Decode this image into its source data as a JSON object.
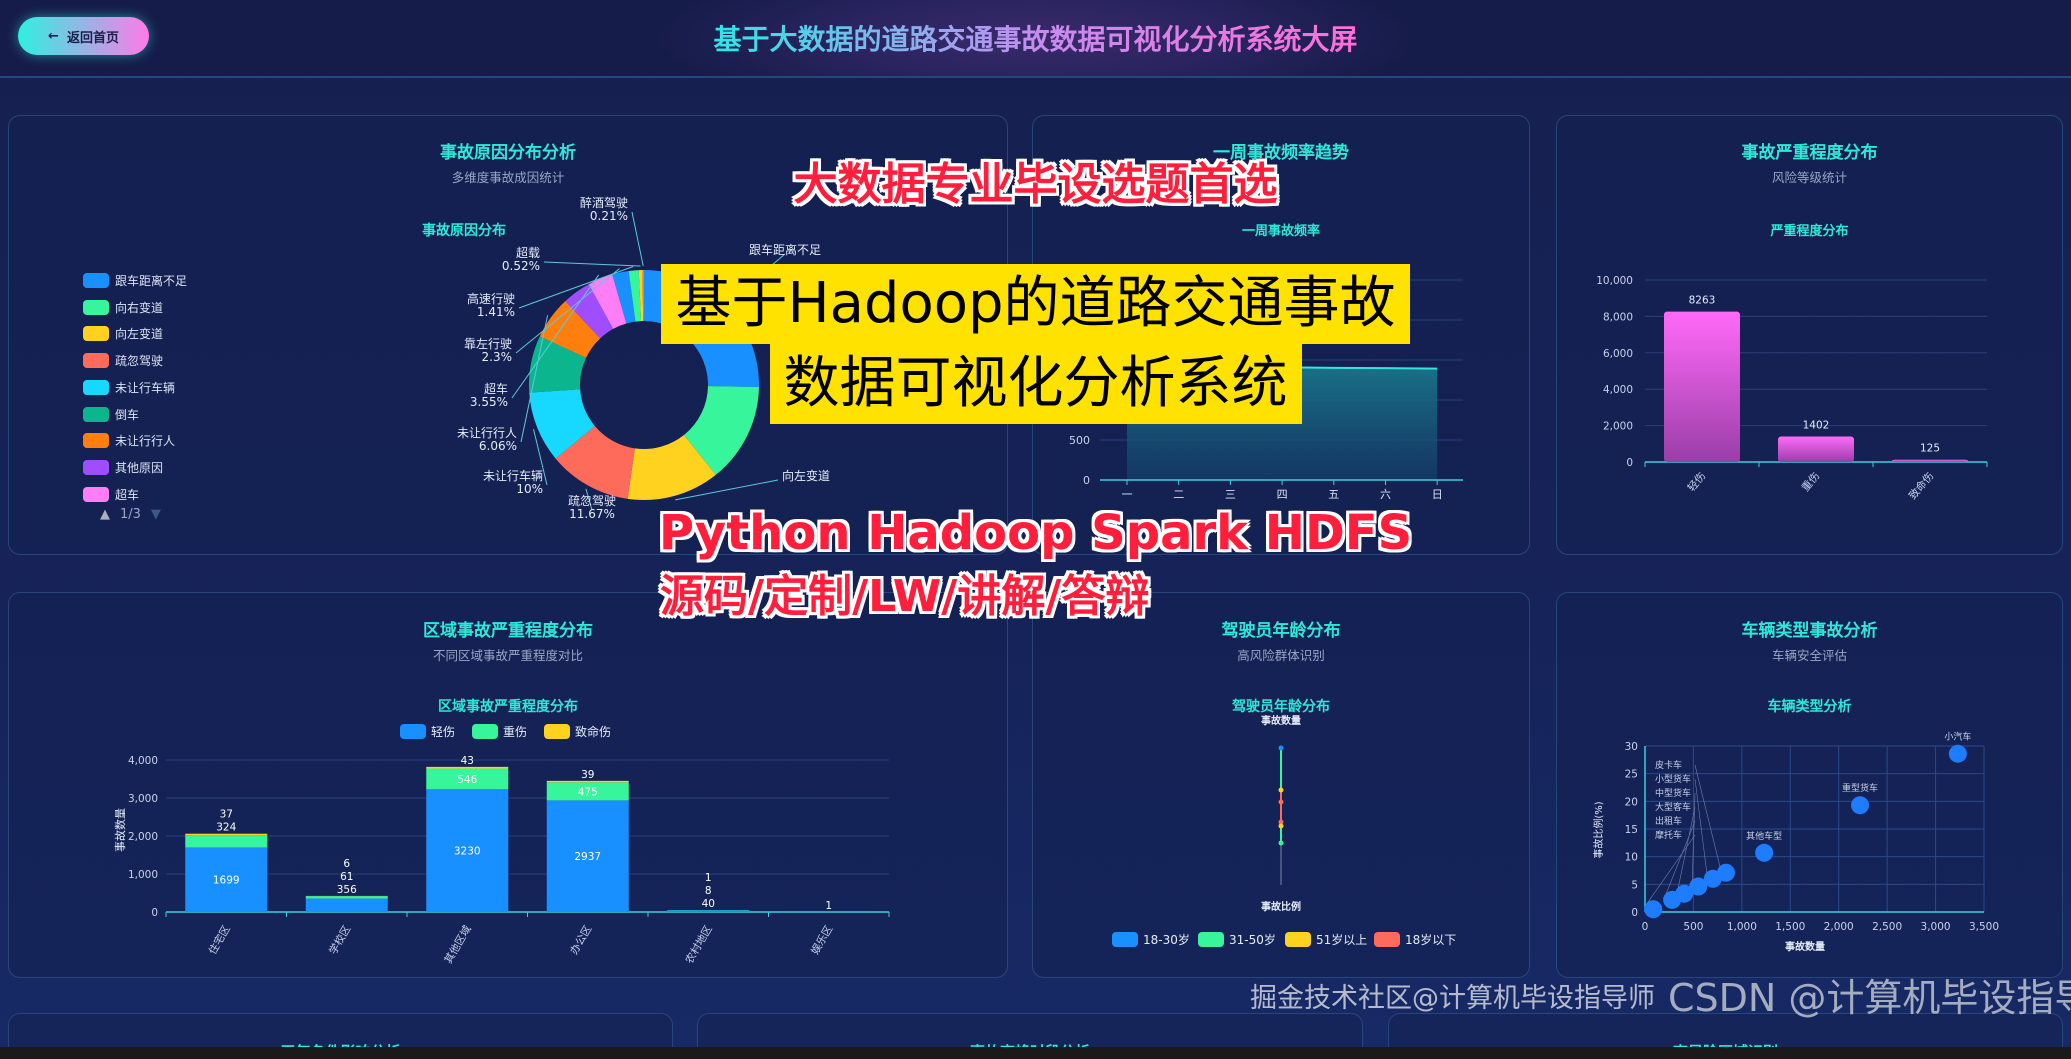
{
  "header": {
    "back_label": "返回首页",
    "back_icon": "arrow-left-icon",
    "title": "基于大数据的道路交通事故数据可视化分析系统大屏"
  },
  "colors": {
    "palette": [
      "#1890ff",
      "#36f59a",
      "#ffd21f",
      "#ff6b5b",
      "#17d9ff",
      "#0bb68f",
      "#ff7f0e",
      "#a04dff",
      "#ff7ef5"
    ],
    "accent": "#2ee8d8",
    "severity_bar": "#ff6af0"
  },
  "cause_panel": {
    "title": "事故原因分布分析",
    "subtitle": "多维度事故成因统计",
    "chart_title": "事故原因分布",
    "legend": [
      "跟车距离不足",
      "向右变道",
      "向左变道",
      "疏忽驾驶",
      "未让行车辆",
      "倒车",
      "未让行行人",
      "其他原因",
      "超车"
    ],
    "pager": "1/3"
  },
  "week_panel": {
    "title": "一周事故频率趋势",
    "chart_title": "一周事故频率"
  },
  "severity_panel": {
    "title": "事故严重程度分布",
    "subtitle": "风险等级统计",
    "chart_title": "严重程度分布"
  },
  "region_panel": {
    "title": "区域事故严重程度分布",
    "subtitle": "不同区域事故严重程度对比",
    "chart_title": "区域事故严重程度分布"
  },
  "age_panel": {
    "title": "驾驶员年龄分布",
    "subtitle": "高风险群体识别",
    "chart_title": "驾驶员年龄分布"
  },
  "vehicle_panel": {
    "title": "车辆类型事故分析",
    "subtitle": "车辆安全评估",
    "chart_title": "车辆类型分析"
  },
  "bottom_panels": [
    "天气条件影响分析",
    "事故高峰时段分析",
    "高风险区域识别"
  ],
  "chart_data": [
    {
      "id": "cause",
      "type": "pie",
      "donut": true,
      "slices": [
        {
          "name": "跟车距离不足",
          "value": 25.28,
          "label": "跟车距离不足"
        },
        {
          "name": "向右变道",
          "value": 14
        },
        {
          "name": "向左变道",
          "value": 13,
          "label": "向左变道"
        },
        {
          "name": "疏忽驾驶",
          "value": 11.67,
          "label": "疏忽驾驶",
          "pct": "11.67%"
        },
        {
          "name": "未让行车辆",
          "value": 10,
          "label": "未让行车辆",
          "pct": "10%"
        },
        {
          "name": "倒车",
          "value": 8
        },
        {
          "name": "未让行行人",
          "value": 6.06,
          "label": "未让行行人",
          "pct": "6.06%"
        },
        {
          "name": "其他原因",
          "value": 4
        },
        {
          "name": "超车",
          "value": 3.55,
          "label": "超车",
          "pct": "3.55%"
        },
        {
          "name": "靠左行驶",
          "value": 2.3,
          "label": "靠左行驶",
          "pct": "2.3%"
        },
        {
          "name": "高速行驶",
          "value": 1.41,
          "label": "高速行驶",
          "pct": "1.41%"
        },
        {
          "name": "超载",
          "value": 0.52,
          "label": "超载",
          "pct": "0.52%"
        },
        {
          "name": "醉酒驾驶",
          "value": 0.21,
          "label": "醉酒驾驶",
          "pct": "0.21%"
        }
      ]
    },
    {
      "id": "week",
      "type": "area",
      "categories": [
        "一",
        "二",
        "三",
        "四",
        "五",
        "六",
        "日"
      ],
      "values": [
        1420,
        1405,
        1398,
        1410,
        1402,
        1399,
        1392
      ],
      "ylim": [
        0,
        2500
      ],
      "yticks": [
        0,
        500,
        1000,
        1500,
        2000,
        2500
      ],
      "ytick_labels_visible": [
        "0",
        "500"
      ]
    },
    {
      "id": "severity",
      "type": "bar",
      "categories": [
        "轻伤",
        "重伤",
        "致命伤"
      ],
      "values": [
        8263,
        1402,
        125
      ],
      "ylim": [
        0,
        10000
      ],
      "yticks": [
        "0",
        "2,000",
        "4,000",
        "6,000",
        "8,000",
        "10,000"
      ]
    },
    {
      "id": "region",
      "type": "bar",
      "stacked": true,
      "ylabel": "事故数量",
      "categories": [
        "住宅区",
        "学校区",
        "其他区域",
        "办公区",
        "农村地区",
        "娱乐区"
      ],
      "series": [
        {
          "name": "轻伤",
          "values": [
            1699,
            356,
            3230,
            2937,
            40,
            1
          ]
        },
        {
          "name": "重伤",
          "values": [
            324,
            61,
            546,
            475,
            8,
            0
          ]
        },
        {
          "name": "致命伤",
          "values": [
            37,
            6,
            43,
            39,
            1,
            0
          ]
        }
      ],
      "ylim": [
        0,
        4000
      ],
      "yticks": [
        "0",
        "1,000",
        "2,000",
        "3,000",
        "4,000"
      ]
    },
    {
      "id": "age",
      "type": "line",
      "x_axis_label": "事故比例",
      "y_axis_label": "事故数量",
      "legend": [
        "18-30岁",
        "31-50岁",
        "51岁以上",
        "18岁以下"
      ]
    },
    {
      "id": "vehicle",
      "type": "scatter",
      "xlabel": "事故数量",
      "ylabel": "事故比例(%)",
      "xlim": [
        0,
        3500
      ],
      "ylim": [
        0,
        30
      ],
      "xticks": [
        "0",
        "500",
        "1,000",
        "1,500",
        "2,000",
        "2,500",
        "3,000",
        "3,500"
      ],
      "yticks": [
        "0",
        "5",
        "10",
        "15",
        "20",
        "25",
        "30"
      ],
      "points": [
        {
          "name": "小汽车",
          "x": 3230,
          "y": 28.6
        },
        {
          "name": "重型货车",
          "x": 2220,
          "y": 19.3
        },
        {
          "name": "其他车型",
          "x": 1230,
          "y": 10.7
        },
        {
          "name": "皮卡车",
          "x": 836,
          "y": 7.1
        },
        {
          "name": "小型货车",
          "x": 700,
          "y": 6.0
        },
        {
          "name": "中型货车",
          "x": 550,
          "y": 4.6
        },
        {
          "name": "大型客车",
          "x": 405,
          "y": 3.3
        },
        {
          "name": "出租车",
          "x": 280,
          "y": 2.2
        },
        {
          "name": "摩托车",
          "x": 85,
          "y": 0.5
        }
      ]
    }
  ],
  "overlay": {
    "headline": "大数据专业毕设选题首选",
    "title_line1": "基于Hadoop的道路交通事故",
    "title_line2": "数据可视化分析系统",
    "tech": "Python Hadoop Spark HDFS",
    "services": "源码/定制/LW/讲解/答辩"
  },
  "watermark": {
    "csdn": "CSDN @计算机毕设指导师",
    "juejin": "掘金技术社区@计算机毕设指导师"
  }
}
